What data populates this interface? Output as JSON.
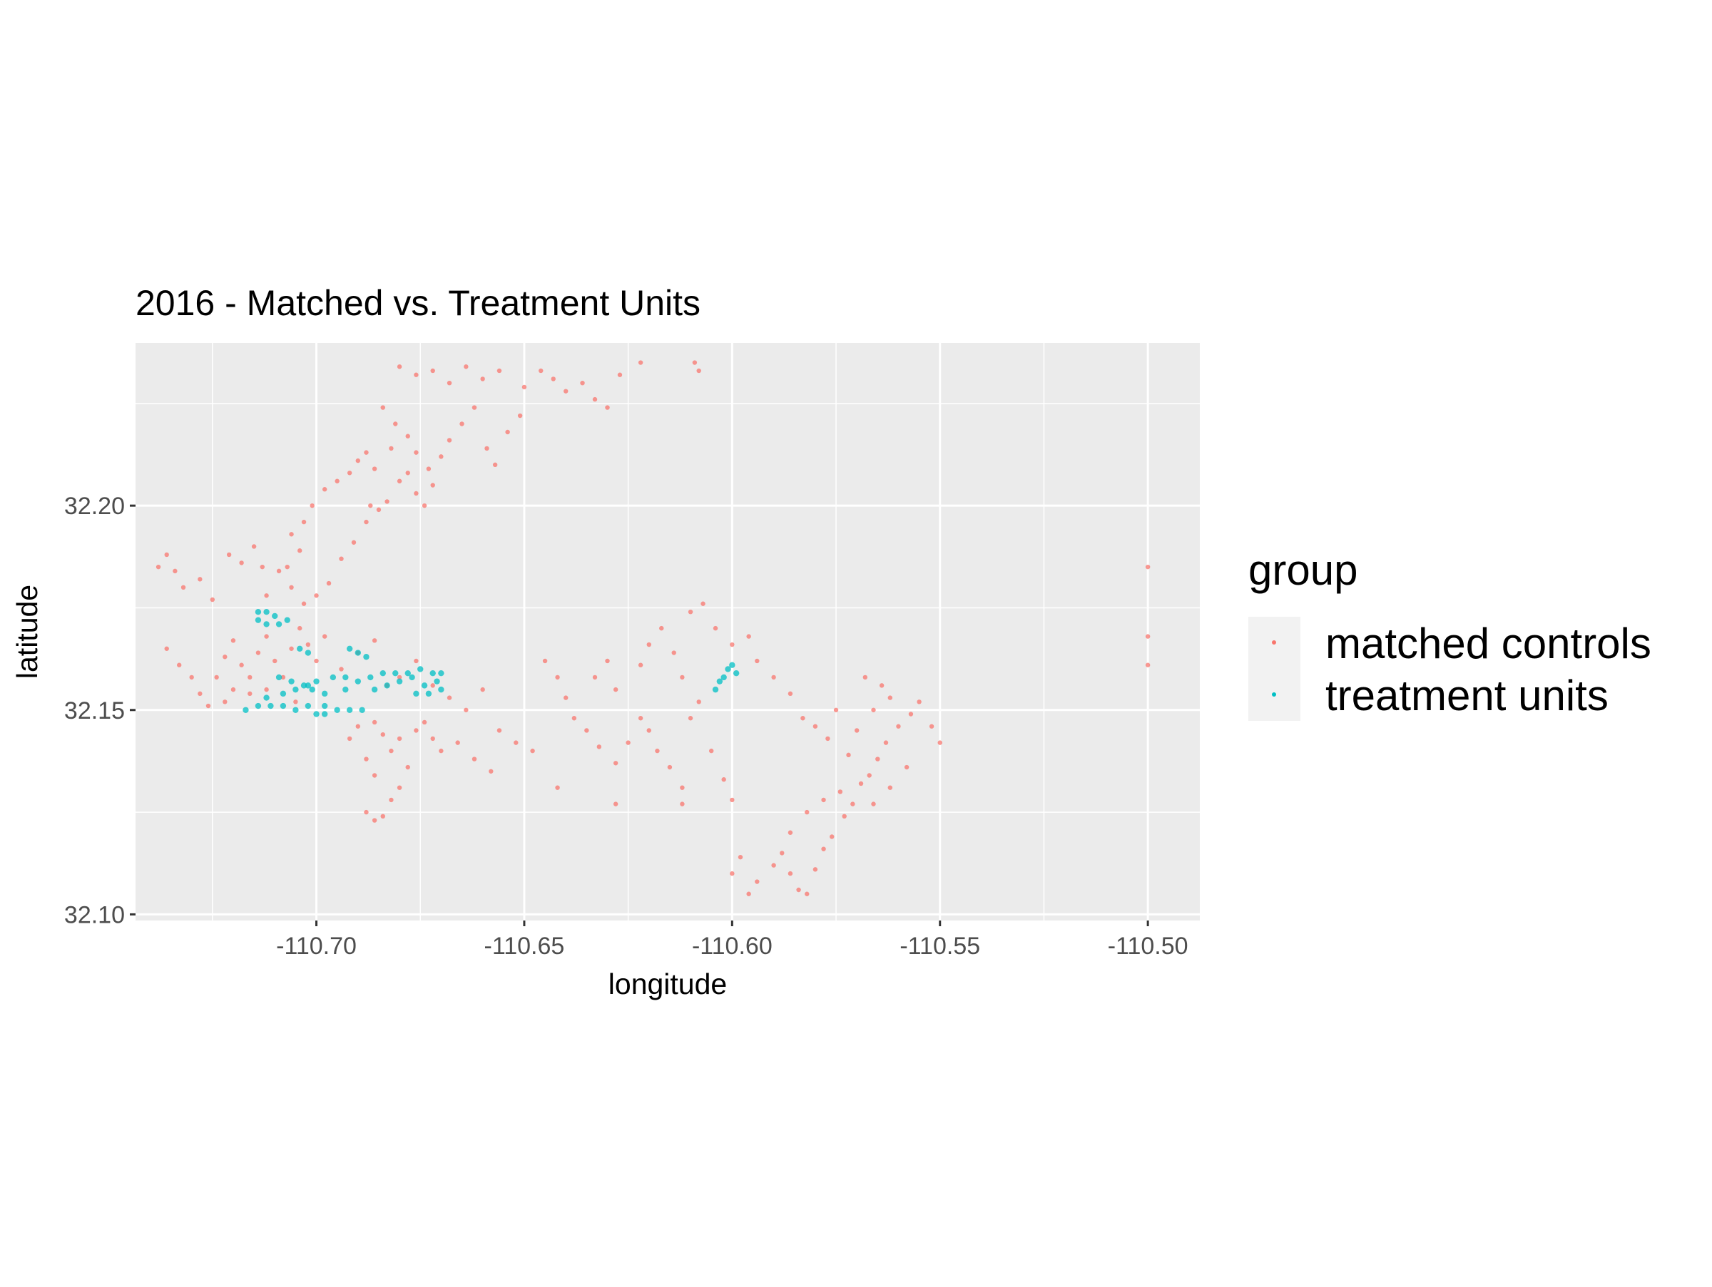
{
  "chart_data": {
    "type": "scatter",
    "title": "2016 - Matched vs. Treatment Units",
    "xlabel": "longitude",
    "ylabel": "latitude",
    "xlim": [
      -110.7435,
      -110.4875
    ],
    "ylim": [
      32.0985,
      32.2398
    ],
    "x_ticks": [
      -110.7,
      -110.65,
      -110.6,
      -110.55,
      -110.5
    ],
    "x_tick_labels": [
      "-110.70",
      "-110.65",
      "-110.60",
      "-110.55",
      "-110.50"
    ],
    "y_ticks": [
      32.1,
      32.15,
      32.2
    ],
    "y_tick_labels": [
      "32.10",
      "32.15",
      "32.20"
    ],
    "grid": true,
    "legend": {
      "title": "group",
      "position": "right",
      "entries": [
        {
          "label": "matched controls",
          "color": "#F8766D"
        },
        {
          "label": "treatment units",
          "color": "#00BFC4"
        }
      ]
    },
    "colors": {
      "panel_bg": "#EBEBEB",
      "grid": "#FFFFFF",
      "legend_key_bg": "#F2F2F2"
    },
    "series": [
      {
        "name": "matched controls",
        "color": "#F8766D",
        "points": [
          [
            -110.68,
            32.234
          ],
          [
            -110.676,
            32.232
          ],
          [
            -110.672,
            32.233
          ],
          [
            -110.668,
            32.23
          ],
          [
            -110.664,
            32.234
          ],
          [
            -110.66,
            32.231
          ],
          [
            -110.656,
            32.233
          ],
          [
            -110.65,
            32.229
          ],
          [
            -110.646,
            32.233
          ],
          [
            -110.643,
            32.231
          ],
          [
            -110.64,
            32.228
          ],
          [
            -110.636,
            32.23
          ],
          [
            -110.633,
            32.226
          ],
          [
            -110.63,
            32.224
          ],
          [
            -110.627,
            32.232
          ],
          [
            -110.622,
            32.235
          ],
          [
            -110.609,
            32.235
          ],
          [
            -110.608,
            32.233
          ],
          [
            -110.684,
            32.224
          ],
          [
            -110.681,
            32.22
          ],
          [
            -110.678,
            32.217
          ],
          [
            -110.676,
            32.213
          ],
          [
            -110.682,
            32.214
          ],
          [
            -110.686,
            32.209
          ],
          [
            -110.68,
            32.206
          ],
          [
            -110.676,
            32.203
          ],
          [
            -110.683,
            32.201
          ],
          [
            -110.687,
            32.2
          ],
          [
            -110.69,
            32.211
          ],
          [
            -110.692,
            32.208
          ],
          [
            -110.695,
            32.206
          ],
          [
            -110.698,
            32.204
          ],
          [
            -110.673,
            32.209
          ],
          [
            -110.67,
            32.212
          ],
          [
            -110.668,
            32.216
          ],
          [
            -110.665,
            32.22
          ],
          [
            -110.662,
            32.224
          ],
          [
            -110.659,
            32.214
          ],
          [
            -110.657,
            32.21
          ],
          [
            -110.654,
            32.218
          ],
          [
            -110.651,
            32.222
          ],
          [
            -110.674,
            32.2
          ],
          [
            -110.672,
            32.205
          ],
          [
            -110.678,
            32.208
          ],
          [
            -110.688,
            32.213
          ],
          [
            -110.701,
            32.2
          ],
          [
            -110.703,
            32.196
          ],
          [
            -110.706,
            32.193
          ],
          [
            -110.704,
            32.189
          ],
          [
            -110.707,
            32.185
          ],
          [
            -110.7,
            32.178
          ],
          [
            -110.697,
            32.181
          ],
          [
            -110.694,
            32.187
          ],
          [
            -110.691,
            32.191
          ],
          [
            -110.688,
            32.196
          ],
          [
            -110.685,
            32.199
          ],
          [
            -110.738,
            32.185
          ],
          [
            -110.736,
            32.188
          ],
          [
            -110.734,
            32.184
          ],
          [
            -110.732,
            32.18
          ],
          [
            -110.728,
            32.182
          ],
          [
            -110.725,
            32.177
          ],
          [
            -110.721,
            32.188
          ],
          [
            -110.718,
            32.186
          ],
          [
            -110.715,
            32.19
          ],
          [
            -110.713,
            32.185
          ],
          [
            -110.712,
            32.178
          ],
          [
            -110.709,
            32.184
          ],
          [
            -110.706,
            32.18
          ],
          [
            -110.703,
            32.176
          ],
          [
            -110.736,
            32.165
          ],
          [
            -110.733,
            32.161
          ],
          [
            -110.73,
            32.158
          ],
          [
            -110.728,
            32.154
          ],
          [
            -110.726,
            32.151
          ],
          [
            -110.724,
            32.158
          ],
          [
            -110.722,
            32.163
          ],
          [
            -110.72,
            32.167
          ],
          [
            -110.718,
            32.161
          ],
          [
            -110.716,
            32.158
          ],
          [
            -110.714,
            32.164
          ],
          [
            -110.712,
            32.168
          ],
          [
            -110.71,
            32.162
          ],
          [
            -110.708,
            32.158
          ],
          [
            -110.706,
            32.165
          ],
          [
            -110.704,
            32.17
          ],
          [
            -110.702,
            32.166
          ],
          [
            -110.7,
            32.162
          ],
          [
            -110.72,
            32.155
          ],
          [
            -110.722,
            32.152
          ],
          [
            -110.716,
            32.154
          ],
          [
            -110.712,
            32.155
          ],
          [
            -110.705,
            32.152
          ],
          [
            -110.698,
            32.168
          ],
          [
            -110.694,
            32.16
          ],
          [
            -110.69,
            32.164
          ],
          [
            -110.686,
            32.167
          ],
          [
            -110.683,
            32.156
          ],
          [
            -110.68,
            32.158
          ],
          [
            -110.676,
            32.162
          ],
          [
            -110.672,
            32.156
          ],
          [
            -110.668,
            32.153
          ],
          [
            -110.664,
            32.15
          ],
          [
            -110.66,
            32.155
          ],
          [
            -110.686,
            32.147
          ],
          [
            -110.684,
            32.144
          ],
          [
            -110.682,
            32.14
          ],
          [
            -110.68,
            32.143
          ],
          [
            -110.678,
            32.136
          ],
          [
            -110.68,
            32.131
          ],
          [
            -110.682,
            32.128
          ],
          [
            -110.684,
            32.124
          ],
          [
            -110.686,
            32.123
          ],
          [
            -110.688,
            32.125
          ],
          [
            -110.676,
            32.145
          ],
          [
            -110.674,
            32.147
          ],
          [
            -110.672,
            32.143
          ],
          [
            -110.67,
            32.14
          ],
          [
            -110.666,
            32.142
          ],
          [
            -110.662,
            32.138
          ],
          [
            -110.658,
            32.135
          ],
          [
            -110.656,
            32.145
          ],
          [
            -110.652,
            32.142
          ],
          [
            -110.648,
            32.14
          ],
          [
            -110.69,
            32.146
          ],
          [
            -110.692,
            32.143
          ],
          [
            -110.688,
            32.138
          ],
          [
            -110.686,
            32.134
          ],
          [
            -110.645,
            32.162
          ],
          [
            -110.642,
            32.158
          ],
          [
            -110.64,
            32.153
          ],
          [
            -110.638,
            32.148
          ],
          [
            -110.635,
            32.145
          ],
          [
            -110.633,
            32.158
          ],
          [
            -110.63,
            32.162
          ],
          [
            -110.628,
            32.155
          ],
          [
            -110.632,
            32.141
          ],
          [
            -110.628,
            32.137
          ],
          [
            -110.625,
            32.142
          ],
          [
            -110.622,
            32.148
          ],
          [
            -110.62,
            32.145
          ],
          [
            -110.618,
            32.14
          ],
          [
            -110.615,
            32.136
          ],
          [
            -110.612,
            32.131
          ],
          [
            -110.61,
            32.148
          ],
          [
            -110.608,
            32.152
          ],
          [
            -110.605,
            32.14
          ],
          [
            -110.602,
            32.133
          ],
          [
            -110.6,
            32.128
          ],
          [
            -110.642,
            32.131
          ],
          [
            -110.628,
            32.127
          ],
          [
            -110.612,
            32.127
          ],
          [
            -110.622,
            32.161
          ],
          [
            -110.62,
            32.166
          ],
          [
            -110.617,
            32.17
          ],
          [
            -110.614,
            32.164
          ],
          [
            -110.612,
            32.158
          ],
          [
            -110.61,
            32.174
          ],
          [
            -110.607,
            32.176
          ],
          [
            -110.604,
            32.17
          ],
          [
            -110.6,
            32.166
          ],
          [
            -110.596,
            32.168
          ],
          [
            -110.594,
            32.162
          ],
          [
            -110.59,
            32.158
          ],
          [
            -110.586,
            32.154
          ],
          [
            -110.583,
            32.148
          ],
          [
            -110.58,
            32.146
          ],
          [
            -110.577,
            32.143
          ],
          [
            -110.575,
            32.15
          ],
          [
            -110.6,
            32.11
          ],
          [
            -110.598,
            32.114
          ],
          [
            -110.596,
            32.105
          ],
          [
            -110.594,
            32.108
          ],
          [
            -110.59,
            32.112
          ],
          [
            -110.586,
            32.11
          ],
          [
            -110.584,
            32.106
          ],
          [
            -110.582,
            32.105
          ],
          [
            -110.58,
            32.111
          ],
          [
            -110.578,
            32.116
          ],
          [
            -110.576,
            32.119
          ],
          [
            -110.573,
            32.124
          ],
          [
            -110.571,
            32.127
          ],
          [
            -110.569,
            32.132
          ],
          [
            -110.567,
            32.134
          ],
          [
            -110.565,
            32.138
          ],
          [
            -110.563,
            32.142
          ],
          [
            -110.56,
            32.146
          ],
          [
            -110.557,
            32.149
          ],
          [
            -110.555,
            32.152
          ],
          [
            -110.552,
            32.146
          ],
          [
            -110.55,
            32.142
          ],
          [
            -110.572,
            32.139
          ],
          [
            -110.57,
            32.145
          ],
          [
            -110.566,
            32.15
          ],
          [
            -110.562,
            32.153
          ],
          [
            -110.568,
            32.158
          ],
          [
            -110.564,
            32.156
          ],
          [
            -110.574,
            32.13
          ],
          [
            -110.578,
            32.128
          ],
          [
            -110.582,
            32.125
          ],
          [
            -110.586,
            32.12
          ],
          [
            -110.588,
            32.115
          ],
          [
            -110.566,
            32.127
          ],
          [
            -110.562,
            32.131
          ],
          [
            -110.558,
            32.136
          ],
          [
            -110.5,
            32.185
          ],
          [
            -110.5,
            32.168
          ],
          [
            -110.5,
            32.161
          ]
        ]
      },
      {
        "name": "treatment units",
        "color": "#00BFC4",
        "points": [
          [
            -110.714,
            32.174
          ],
          [
            -110.712,
            32.174
          ],
          [
            -110.71,
            32.173
          ],
          [
            -110.714,
            32.172
          ],
          [
            -110.712,
            32.171
          ],
          [
            -110.709,
            32.171
          ],
          [
            -110.707,
            32.172
          ],
          [
            -110.717,
            32.15
          ],
          [
            -110.714,
            32.151
          ],
          [
            -110.711,
            32.151
          ],
          [
            -110.708,
            32.151
          ],
          [
            -110.705,
            32.15
          ],
          [
            -110.702,
            32.151
          ],
          [
            -110.698,
            32.151
          ],
          [
            -110.695,
            32.15
          ],
          [
            -110.692,
            32.15
          ],
          [
            -110.689,
            32.15
          ],
          [
            -110.712,
            32.153
          ],
          [
            -110.708,
            32.154
          ],
          [
            -110.705,
            32.155
          ],
          [
            -110.702,
            32.156
          ],
          [
            -110.7,
            32.157
          ],
          [
            -110.696,
            32.158
          ],
          [
            -110.693,
            32.158
          ],
          [
            -110.709,
            32.158
          ],
          [
            -110.706,
            32.157
          ],
          [
            -110.703,
            32.156
          ],
          [
            -110.701,
            32.155
          ],
          [
            -110.698,
            32.154
          ],
          [
            -110.704,
            32.165
          ],
          [
            -110.702,
            32.164
          ],
          [
            -110.692,
            32.165
          ],
          [
            -110.69,
            32.164
          ],
          [
            -110.688,
            32.163
          ],
          [
            -110.693,
            32.155
          ],
          [
            -110.69,
            32.157
          ],
          [
            -110.687,
            32.158
          ],
          [
            -110.684,
            32.159
          ],
          [
            -110.681,
            32.159
          ],
          [
            -110.678,
            32.159
          ],
          [
            -110.675,
            32.16
          ],
          [
            -110.672,
            32.159
          ],
          [
            -110.67,
            32.159
          ],
          [
            -110.686,
            32.155
          ],
          [
            -110.683,
            32.156
          ],
          [
            -110.68,
            32.157
          ],
          [
            -110.677,
            32.158
          ],
          [
            -110.674,
            32.156
          ],
          [
            -110.671,
            32.157
          ],
          [
            -110.676,
            32.154
          ],
          [
            -110.673,
            32.154
          ],
          [
            -110.67,
            32.155
          ],
          [
            -110.698,
            32.149
          ],
          [
            -110.7,
            32.149
          ],
          [
            -110.604,
            32.155
          ],
          [
            -110.603,
            32.157
          ],
          [
            -110.602,
            32.158
          ],
          [
            -110.601,
            32.16
          ],
          [
            -110.6,
            32.161
          ],
          [
            -110.599,
            32.159
          ]
        ]
      }
    ]
  }
}
